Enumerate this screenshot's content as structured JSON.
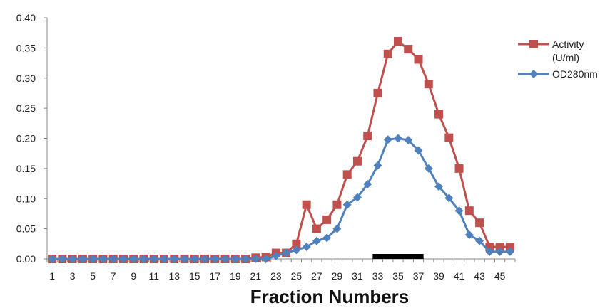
{
  "chart_data": {
    "type": "line",
    "xlabel": "Fraction Numbers",
    "ylabel": "",
    "ylim": [
      0,
      0.4
    ],
    "yticks": [
      "0.00",
      "0.05",
      "0.10",
      "0.15",
      "0.20",
      "0.25",
      "0.30",
      "0.35",
      "0.40"
    ],
    "xtick_labels": [
      "1",
      "3",
      "5",
      "7",
      "9",
      "11",
      "13",
      "15",
      "17",
      "19",
      "21",
      "23",
      "25",
      "27",
      "29",
      "31",
      "33",
      "35",
      "37",
      "39",
      "41",
      "43",
      "45"
    ],
    "grid": false,
    "legend_position": "top-right",
    "x": [
      1,
      2,
      3,
      4,
      5,
      6,
      7,
      8,
      9,
      10,
      11,
      12,
      13,
      14,
      15,
      16,
      17,
      18,
      19,
      20,
      21,
      22,
      23,
      24,
      25,
      26,
      27,
      28,
      29,
      30,
      31,
      32,
      33,
      34,
      35,
      36,
      37,
      38,
      39,
      40,
      41,
      42,
      43,
      44,
      45,
      46
    ],
    "series": [
      {
        "name_lines": [
          "Activity",
          "(U/ml)"
        ],
        "color": "#C0504D",
        "marker": "square",
        "values": [
          0,
          0,
          0,
          0,
          0,
          0,
          0,
          0,
          0,
          0,
          0,
          0,
          0,
          0,
          0,
          0,
          0,
          0,
          0,
          0,
          0.002,
          0.003,
          0.01,
          0.01,
          0.025,
          0.09,
          0.05,
          0.065,
          0.09,
          0.14,
          0.162,
          0.204,
          0.275,
          0.34,
          0.361,
          0.348,
          0.331,
          0.29,
          0.24,
          0.201,
          0.15,
          0.08,
          0.06,
          0.02,
          0.02,
          0.02
        ]
      },
      {
        "name_lines": [
          "OD280nm"
        ],
        "color": "#4F81BD",
        "marker": "diamond",
        "values": [
          0,
          0,
          0,
          0,
          0,
          0,
          0,
          0,
          0,
          0,
          0,
          0,
          0,
          0,
          0,
          0,
          0,
          0,
          0,
          0,
          0,
          0,
          0.005,
          0.01,
          0.015,
          0.02,
          0.03,
          0.035,
          0.05,
          0.09,
          0.102,
          0.124,
          0.155,
          0.198,
          0.2,
          0.197,
          0.18,
          0.15,
          0.12,
          0.101,
          0.08,
          0.04,
          0.03,
          0.012,
          0.012,
          0.012
        ]
      }
    ],
    "bar_marker": {
      "from": 33,
      "to": 37,
      "color": "#000000"
    }
  }
}
